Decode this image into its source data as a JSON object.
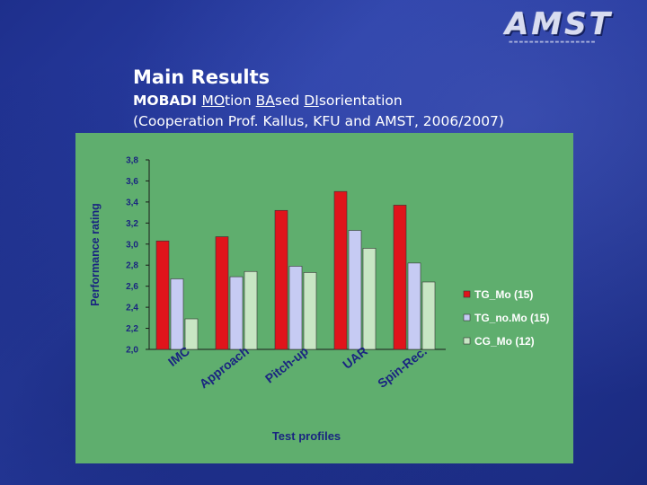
{
  "logo": {
    "text": "AMST"
  },
  "slide": {
    "title": "Main Results",
    "subtitle_bold": "MOBADI",
    "subtitle_parts": [
      "MO",
      "tion ",
      "BA",
      "sed ",
      "DI",
      "sorientation"
    ],
    "subtitle_line2": "(Cooperation Prof. Kallus, KFU and AMST, 2006/2007)"
  },
  "colors": {
    "background": "#23369a",
    "chart_bg": "#5fae6e",
    "series": [
      "#e0141b",
      "#c6cbf3",
      "#c8e6c4"
    ]
  },
  "chart_data": {
    "type": "bar",
    "categories": [
      "IMC",
      "Approach",
      "Pitch-up",
      "UAR",
      "Spin-Rec."
    ],
    "series": [
      {
        "name": "TG_Mo (15)",
        "values": [
          3.03,
          3.07,
          3.32,
          3.5,
          3.37
        ]
      },
      {
        "name": "TG_no.Mo (15)",
        "values": [
          2.67,
          2.69,
          2.79,
          3.13,
          2.82
        ]
      },
      {
        "name": "CG_Mo (12)",
        "values": [
          2.29,
          2.74,
          2.73,
          2.96,
          2.64
        ]
      }
    ],
    "xlabel": "Test profiles",
    "ylabel": "Performance rating",
    "ylim": [
      2.0,
      3.8
    ],
    "yticks": [
      "2,0",
      "2,2",
      "2,4",
      "2,6",
      "2,8",
      "3,0",
      "3,2",
      "3,4",
      "3,6",
      "3,8"
    ],
    "legend": "right",
    "grid": false
  }
}
